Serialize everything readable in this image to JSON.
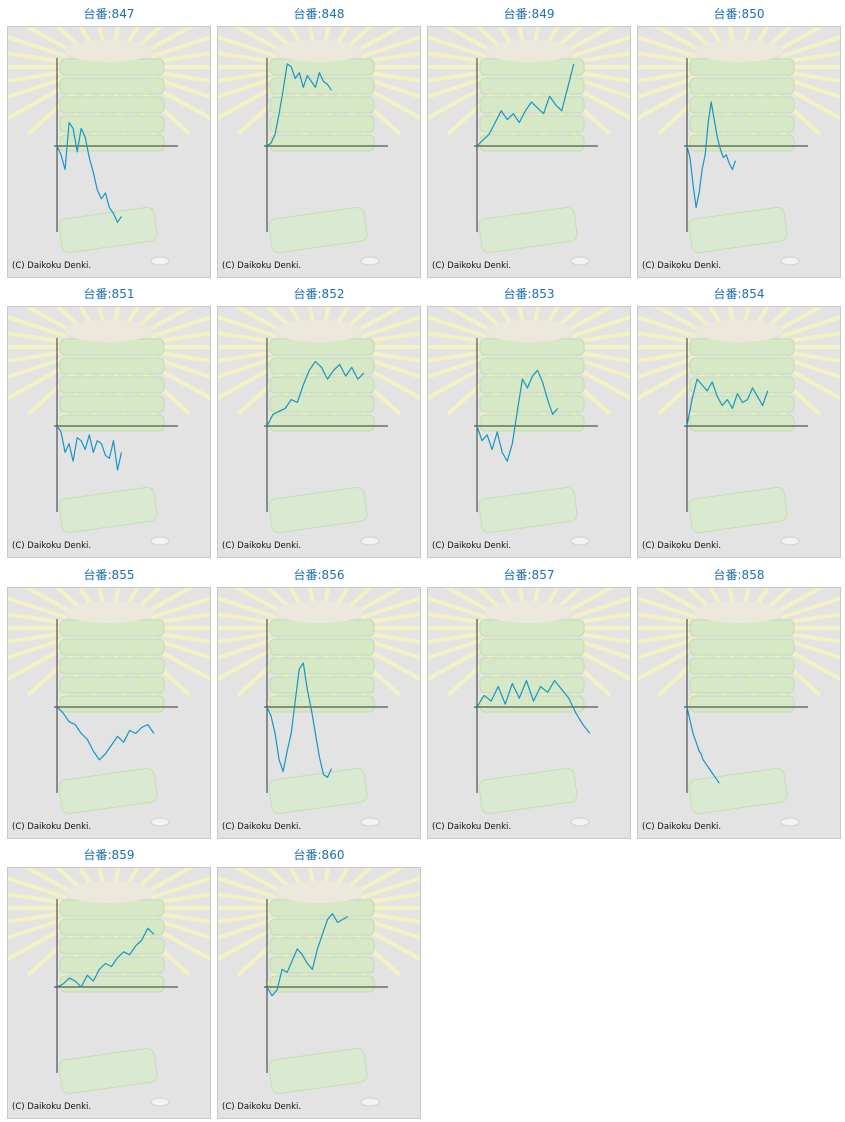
{
  "copyright": "(C) Daikoku Denki.",
  "colors": {
    "line": "#1497c6",
    "axis": "#333333",
    "title": "#1d6fb4",
    "panel_bg": "#e3e3e3",
    "border": "#c8c8c8"
  },
  "chart_data": [
    {
      "type": "line",
      "title": "台番:847",
      "x": [
        0,
        4,
        8,
        12,
        16,
        20,
        24,
        28,
        32,
        36,
        40,
        44,
        48,
        52,
        56,
        60,
        64
      ],
      "values": [
        0,
        -0.3,
        -0.8,
        0.8,
        0.6,
        -0.2,
        0.6,
        0.3,
        -0.4,
        -0.9,
        -1.5,
        -1.8,
        -1.6,
        -2.1,
        -2.3,
        -2.6,
        -2.4
      ],
      "ylim": [
        -3,
        3
      ]
    },
    {
      "type": "line",
      "title": "台番:848",
      "x": [
        0,
        4,
        8,
        12,
        16,
        20,
        24,
        28,
        32,
        36,
        40,
        44,
        48,
        52,
        56,
        60,
        64
      ],
      "values": [
        0,
        0.1,
        0.4,
        1.1,
        1.9,
        2.8,
        2.7,
        2.3,
        2.5,
        2.0,
        2.4,
        2.2,
        2.0,
        2.5,
        2.2,
        2.1,
        1.9
      ],
      "ylim": [
        -3,
        3
      ]
    },
    {
      "type": "line",
      "title": "台番:849",
      "x": [
        0,
        6,
        12,
        18,
        24,
        30,
        36,
        42,
        48,
        54,
        60,
        66,
        72,
        78,
        84,
        90,
        96
      ],
      "values": [
        0,
        0.2,
        0.4,
        0.8,
        1.2,
        0.9,
        1.1,
        0.8,
        1.2,
        1.5,
        1.3,
        1.1,
        1.7,
        1.4,
        1.2,
        2.0,
        2.8
      ],
      "ylim": [
        -3,
        3
      ]
    },
    {
      "type": "line",
      "title": "台番:850",
      "x": [
        0,
        3,
        6,
        9,
        12,
        15,
        18,
        21,
        24,
        27,
        30,
        33,
        36,
        39,
        42,
        45,
        48
      ],
      "values": [
        0,
        -0.4,
        -1.3,
        -2.1,
        -1.6,
        -0.8,
        -0.3,
        0.8,
        1.5,
        0.9,
        0.3,
        -0.1,
        -0.4,
        -0.3,
        -0.6,
        -0.8,
        -0.5
      ],
      "ylim": [
        -3,
        3
      ]
    },
    {
      "type": "line",
      "title": "台番:851",
      "x": [
        0,
        4,
        8,
        12,
        16,
        20,
        24,
        28,
        32,
        36,
        40,
        44,
        48,
        52,
        56,
        60,
        64
      ],
      "values": [
        0,
        -0.2,
        -0.9,
        -0.6,
        -1.2,
        -0.4,
        -0.5,
        -0.8,
        -0.3,
        -0.9,
        -0.5,
        -0.6,
        -1.0,
        -1.1,
        -0.5,
        -1.5,
        -0.9
      ],
      "ylim": [
        -3,
        3
      ]
    },
    {
      "type": "line",
      "title": "台番:852",
      "x": [
        0,
        6,
        12,
        18,
        24,
        30,
        36,
        42,
        48,
        54,
        60,
        66,
        72,
        78,
        84,
        90,
        96
      ],
      "values": [
        0,
        0.4,
        0.5,
        0.6,
        0.9,
        0.8,
        1.4,
        1.9,
        2.2,
        2.0,
        1.6,
        1.9,
        2.1,
        1.7,
        2.0,
        1.6,
        1.8
      ],
      "ylim": [
        -3,
        3
      ]
    },
    {
      "type": "line",
      "title": "台番:853",
      "x": [
        0,
        5,
        10,
        15,
        20,
        25,
        30,
        35,
        40,
        45,
        50,
        55,
        60,
        65,
        70,
        75,
        80
      ],
      "values": [
        0,
        -0.5,
        -0.3,
        -0.8,
        -0.2,
        -0.9,
        -1.2,
        -0.6,
        0.5,
        1.6,
        1.3,
        1.7,
        1.9,
        1.5,
        0.9,
        0.4,
        0.6
      ],
      "ylim": [
        -3,
        3
      ]
    },
    {
      "type": "line",
      "title": "台番:854",
      "x": [
        0,
        5,
        10,
        15,
        20,
        25,
        30,
        35,
        40,
        45,
        50,
        55,
        60,
        65,
        70,
        75,
        80
      ],
      "values": [
        0,
        0.9,
        1.6,
        1.4,
        1.2,
        1.5,
        1.0,
        0.7,
        0.9,
        0.6,
        1.1,
        0.8,
        0.9,
        1.3,
        1.0,
        0.7,
        1.2
      ],
      "ylim": [
        -3,
        3
      ]
    },
    {
      "type": "line",
      "title": "台番:855",
      "x": [
        0,
        6,
        12,
        18,
        24,
        30,
        36,
        42,
        48,
        54,
        60,
        66,
        72,
        78,
        84,
        90,
        96
      ],
      "values": [
        0,
        -0.2,
        -0.5,
        -0.6,
        -0.9,
        -1.1,
        -1.5,
        -1.8,
        -1.6,
        -1.3,
        -1.0,
        -1.2,
        -0.8,
        -0.9,
        -0.7,
        -0.6,
        -0.9
      ],
      "ylim": [
        -3,
        3
      ]
    },
    {
      "type": "line",
      "title": "台番:856",
      "x": [
        0,
        4,
        8,
        12,
        16,
        20,
        24,
        28,
        32,
        36,
        40,
        44,
        48,
        52,
        56,
        60,
        64
      ],
      "values": [
        0,
        -0.3,
        -0.9,
        -1.8,
        -2.2,
        -1.5,
        -0.9,
        0.2,
        1.3,
        1.5,
        0.6,
        -0.1,
        -0.9,
        -1.7,
        -2.3,
        -2.4,
        -2.1
      ],
      "ylim": [
        -3,
        3
      ]
    },
    {
      "type": "line",
      "title": "台番:857",
      "x": [
        0,
        7,
        14,
        21,
        28,
        35,
        42,
        49,
        56,
        63,
        70,
        77,
        84,
        91,
        98,
        105,
        112
      ],
      "values": [
        0,
        0.4,
        0.2,
        0.7,
        0.1,
        0.8,
        0.3,
        0.9,
        0.2,
        0.7,
        0.5,
        0.9,
        0.6,
        0.3,
        -0.2,
        -0.6,
        -0.9
      ],
      "ylim": [
        -3,
        3
      ]
    },
    {
      "type": "line",
      "title": "台番:858",
      "x": [
        0,
        2,
        4,
        6,
        8,
        10,
        12,
        14,
        16,
        18,
        20,
        22,
        24,
        26,
        28,
        30,
        32
      ],
      "values": [
        0,
        -0.3,
        -0.6,
        -0.9,
        -1.1,
        -1.3,
        -1.5,
        -1.6,
        -1.8,
        -1.9,
        -2.0,
        -2.1,
        -2.2,
        -2.3,
        -2.4,
        -2.5,
        -2.6
      ],
      "ylim": [
        -3,
        3
      ]
    },
    {
      "type": "line",
      "title": "台番:859",
      "x": [
        0,
        6,
        12,
        18,
        24,
        30,
        36,
        42,
        48,
        54,
        60,
        66,
        72,
        78,
        84,
        90,
        96
      ],
      "values": [
        0,
        0.1,
        0.3,
        0.2,
        0.0,
        0.4,
        0.2,
        0.6,
        0.8,
        0.7,
        1.0,
        1.2,
        1.1,
        1.4,
        1.6,
        2.0,
        1.8
      ],
      "ylim": [
        -3,
        3
      ]
    },
    {
      "type": "line",
      "title": "台番:860",
      "x": [
        0,
        5,
        10,
        15,
        20,
        25,
        30,
        35,
        40,
        45,
        50,
        55,
        60,
        65,
        70,
        75,
        80
      ],
      "values": [
        0,
        -0.3,
        -0.1,
        0.6,
        0.5,
        0.9,
        1.3,
        1.1,
        0.8,
        0.6,
        1.3,
        1.8,
        2.3,
        2.5,
        2.2,
        2.3,
        2.4
      ],
      "ylim": [
        -3,
        3
      ]
    }
  ]
}
